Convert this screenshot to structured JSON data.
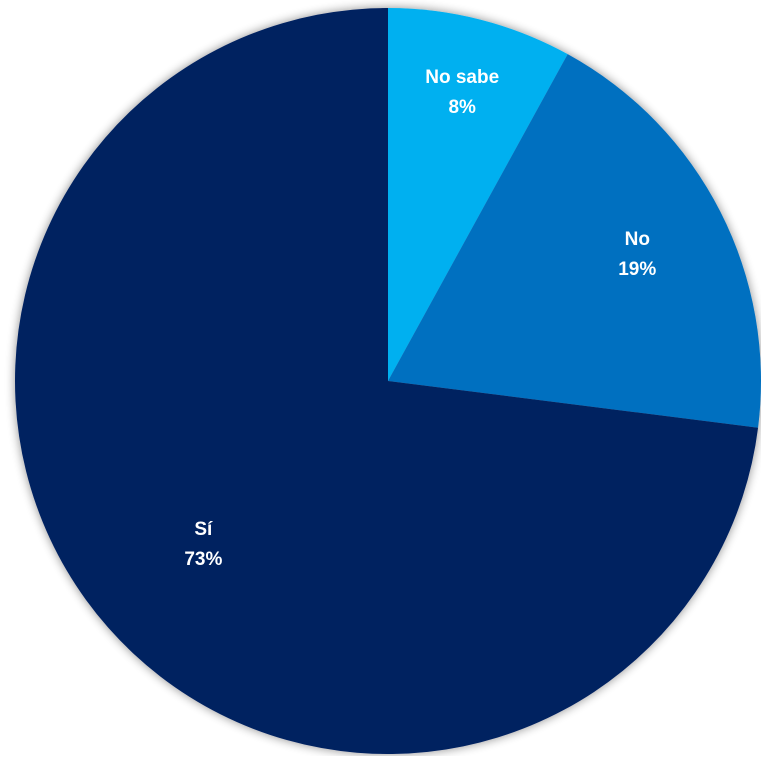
{
  "chart_data": {
    "type": "pie",
    "title": "",
    "slices": [
      {
        "label": "No sabe",
        "value": 8,
        "value_label": "8%",
        "color": "#00B0F0"
      },
      {
        "label": "No",
        "value": 19,
        "value_label": "19%",
        "color": "#0070C0"
      },
      {
        "label": "Sí",
        "value": 73,
        "value_label": "73%",
        "color": "#002060"
      }
    ],
    "start_angle": "12 o'clock",
    "direction": "clockwise",
    "legend": "none",
    "data_labels": "category and percentage, inside slices"
  }
}
